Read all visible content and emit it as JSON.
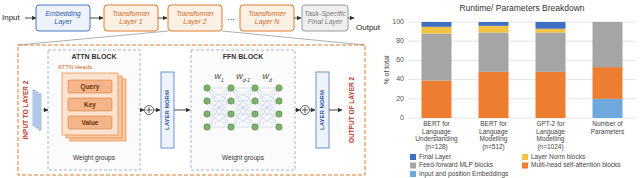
{
  "diagram": {
    "input": "Input",
    "output": "Output",
    "embedding": "Embedding\nLayer",
    "transformer_layers": [
      "Transformer\nLayer 1",
      "Transformer\nLayer 2",
      "Transformer\nLayer N"
    ],
    "ellipsis": "...",
    "final_layer": "Task-Specific\nFinal Layer",
    "detail": {
      "input_label": "INPUT TO LAYER 2",
      "output_label": "OUTPUT OF LAYER 2",
      "attn_block": {
        "title": "ATTN BLOCK",
        "heads": "ATTN Heads",
        "qkv": [
          "Query",
          "Key",
          "Value"
        ],
        "weight_groups": "Weight groups"
      },
      "layer_norm": "LAYER NORM",
      "ffn_block": {
        "title": "FFN BLOCK",
        "weights": [
          {
            "base": "W",
            "sub": "1"
          },
          {
            "base": "W",
            "sub": "d-1"
          },
          {
            "base": "W",
            "sub": "d"
          }
        ],
        "weight_groups": "Weight groups"
      }
    }
  },
  "chart_data": {
    "type": "bar",
    "title": "Runtime/ Parameters Breakdown",
    "y_label": "% of total",
    "categories": [
      "BERT for\nLanguage\nUnderstanding\n(n=128)",
      "BERT for\nLanguage\nModelling\n(n=512)",
      "GPT-2 for\nLanguage\nModelling\n(n=1024)",
      "Number of\nParameters"
    ],
    "series": [
      {
        "name": "Input and position Embeddings",
        "color": "#6fa8dc",
        "values": [
          0,
          0,
          0,
          20
        ]
      },
      {
        "name": "Multi-head self-attention blocks",
        "color": "#ed7d31",
        "values": [
          39,
          48,
          48,
          33
        ]
      },
      {
        "name": "Feed-forward MLP blocks",
        "color": "#a5a5a5",
        "values": [
          49,
          41,
          41,
          47
        ]
      },
      {
        "name": "Layer Norm blocks",
        "color": "#f4c242",
        "values": [
          7,
          7,
          4,
          0
        ]
      },
      {
        "name": "Final Layer",
        "color": "#3c6fc2",
        "values": [
          5,
          4,
          7,
          0
        ]
      }
    ],
    "stacked": true,
    "ylim": [
      0,
      100
    ],
    "yticks": [
      0,
      20,
      40,
      60,
      80,
      100
    ],
    "grid": true,
    "legend": "bottom"
  }
}
